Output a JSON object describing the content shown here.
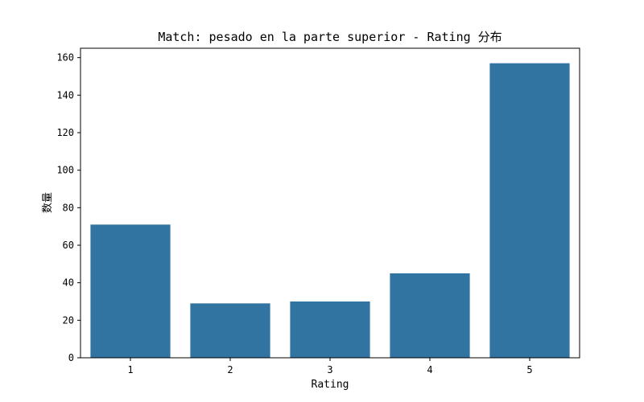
{
  "chart_data": {
    "type": "bar",
    "title": "Match: pesado en la parte superior - Rating 分布",
    "xlabel": "Rating",
    "ylabel": "数量",
    "categories": [
      "1",
      "2",
      "3",
      "4",
      "5"
    ],
    "values": [
      71,
      29,
      30,
      45,
      157
    ],
    "ylim": [
      0,
      165
    ],
    "yticks": [
      0,
      20,
      40,
      60,
      80,
      100,
      120,
      140,
      160
    ],
    "bar_color": "#3274a1",
    "grid": false,
    "legend": "none"
  }
}
